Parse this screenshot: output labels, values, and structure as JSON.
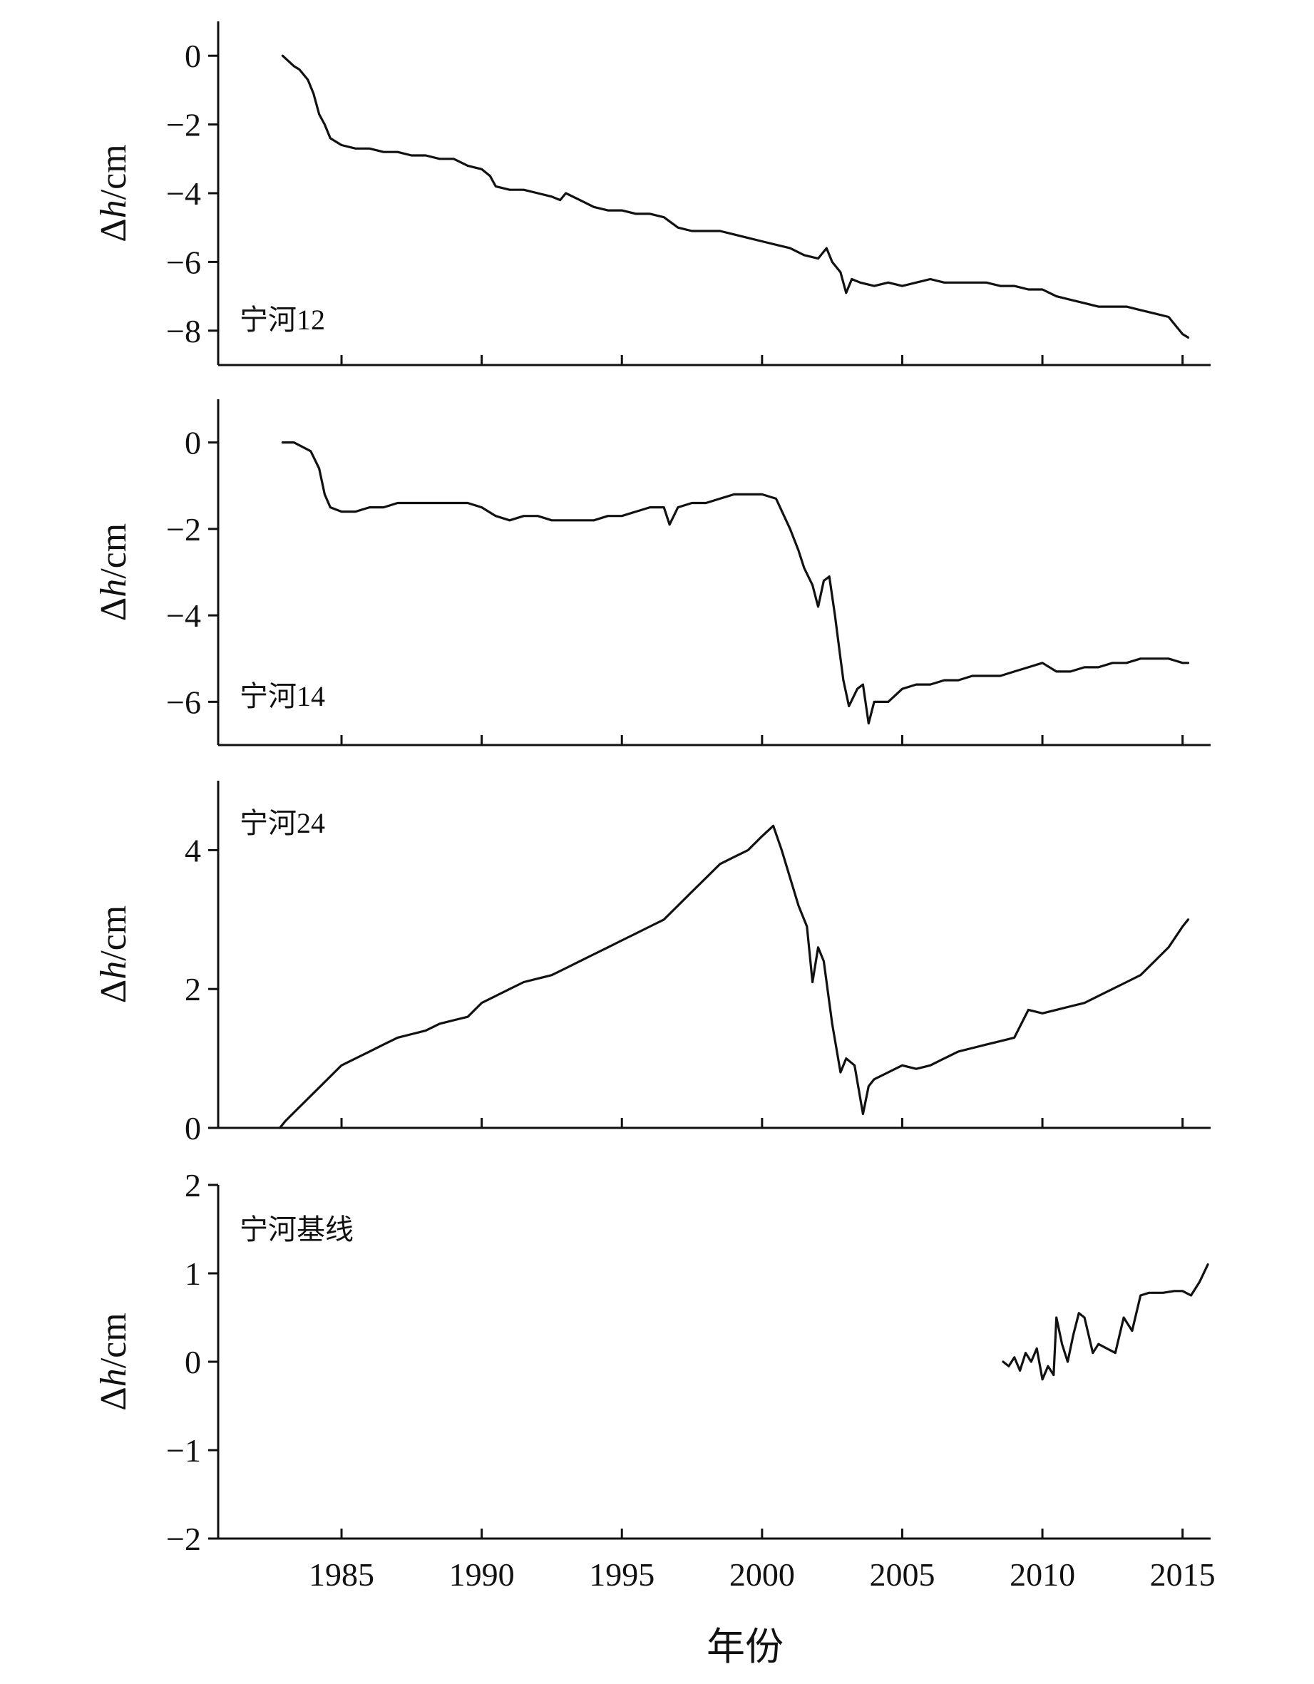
{
  "figure": {
    "xlabel": "年份",
    "x_ticks": [
      1985,
      1990,
      1995,
      2000,
      2005,
      2010,
      2015
    ],
    "xlim": [
      1980.6,
      2016.0
    ]
  },
  "chart_data": [
    {
      "type": "line",
      "title": "",
      "label": "宁河12",
      "ylabel_symbol": "Δ",
      "ylabel_var": "h",
      "ylabel_unit": "/cm",
      "ylim": [
        -9.0,
        1.0
      ],
      "y_ticks": [
        0,
        -2,
        -4,
        -6,
        -8
      ],
      "y_tick_labels": [
        "0",
        "−2",
        "−4",
        "−6",
        "−8"
      ],
      "show_x_tick_labels": false,
      "series": [
        {
          "x": [
            1982.9,
            1983.3,
            1983.5,
            1983.8,
            1984.0,
            1984.2,
            1984.4,
            1984.6,
            1985.0,
            1985.5,
            1986.0,
            1986.5,
            1987.0,
            1987.5,
            1988.0,
            1988.5,
            1989.0,
            1989.5,
            1990.0,
            1990.3,
            1990.5,
            1991.0,
            1991.5,
            1992.0,
            1992.5,
            1992.8,
            1993.0,
            1993.5,
            1994.0,
            1994.5,
            1995.0,
            1995.5,
            1996.0,
            1996.5,
            1997.0,
            1997.5,
            1998.0,
            1998.5,
            1999.0,
            1999.5,
            2000.0,
            2000.5,
            2001.0,
            2001.5,
            2002.0,
            2002.3,
            2002.5,
            2002.8,
            2003.0,
            2003.2,
            2003.5,
            2004.0,
            2004.5,
            2005.0,
            2005.5,
            2006.0,
            2006.5,
            2007.0,
            2007.5,
            2008.0,
            2008.5,
            2009.0,
            2009.5,
            2010.0,
            2010.5,
            2011.0,
            2011.5,
            2012.0,
            2012.5,
            2013.0,
            2013.5,
            2014.0,
            2014.5,
            2014.8,
            2015.0,
            2015.2
          ],
          "y": [
            0.0,
            -0.3,
            -0.4,
            -0.7,
            -1.1,
            -1.7,
            -2.0,
            -2.4,
            -2.6,
            -2.7,
            -2.7,
            -2.8,
            -2.8,
            -2.9,
            -2.9,
            -3.0,
            -3.0,
            -3.2,
            -3.3,
            -3.5,
            -3.8,
            -3.9,
            -3.9,
            -4.0,
            -4.1,
            -4.2,
            -4.0,
            -4.2,
            -4.4,
            -4.5,
            -4.5,
            -4.6,
            -4.6,
            -4.7,
            -5.0,
            -5.1,
            -5.1,
            -5.1,
            -5.2,
            -5.3,
            -5.4,
            -5.5,
            -5.6,
            -5.8,
            -5.9,
            -5.6,
            -6.0,
            -6.3,
            -6.9,
            -6.5,
            -6.6,
            -6.7,
            -6.6,
            -6.7,
            -6.6,
            -6.5,
            -6.6,
            -6.6,
            -6.6,
            -6.6,
            -6.7,
            -6.7,
            -6.8,
            -6.8,
            -7.0,
            -7.1,
            -7.2,
            -7.3,
            -7.3,
            -7.3,
            -7.4,
            -7.5,
            -7.6,
            -7.9,
            -8.1,
            -8.2
          ]
        }
      ]
    },
    {
      "type": "line",
      "title": "",
      "label": "宁河14",
      "ylabel_symbol": "Δ",
      "ylabel_var": "h",
      "ylabel_unit": "/cm",
      "ylim": [
        -7.0,
        1.0
      ],
      "y_ticks": [
        0,
        -2,
        -4,
        -6
      ],
      "y_tick_labels": [
        "0",
        "−2",
        "−4",
        "−6"
      ],
      "show_x_tick_labels": false,
      "series": [
        {
          "x": [
            1982.9,
            1983.3,
            1983.6,
            1983.9,
            1984.2,
            1984.4,
            1984.6,
            1985.0,
            1985.5,
            1986.0,
            1986.5,
            1987.0,
            1987.5,
            1988.0,
            1988.5,
            1989.0,
            1989.5,
            1990.0,
            1990.5,
            1991.0,
            1991.5,
            1992.0,
            1992.5,
            1993.0,
            1993.5,
            1994.0,
            1994.5,
            1995.0,
            1995.5,
            1996.0,
            1996.5,
            1996.7,
            1997.0,
            1997.5,
            1998.0,
            1998.5,
            1999.0,
            1999.5,
            2000.0,
            2000.5,
            2001.0,
            2001.3,
            2001.5,
            2001.8,
            2002.0,
            2002.2,
            2002.4,
            2002.6,
            2002.8,
            2002.9,
            2003.1,
            2003.4,
            2003.6,
            2003.8,
            2004.0,
            2004.5,
            2005.0,
            2005.5,
            2006.0,
            2006.5,
            2007.0,
            2007.5,
            2008.0,
            2008.5,
            2009.0,
            2009.5,
            2010.0,
            2010.5,
            2011.0,
            2011.5,
            2012.0,
            2012.5,
            2013.0,
            2013.5,
            2014.0,
            2014.5,
            2015.0,
            2015.2
          ],
          "y": [
            0.0,
            0.0,
            -0.1,
            -0.2,
            -0.6,
            -1.2,
            -1.5,
            -1.6,
            -1.6,
            -1.5,
            -1.5,
            -1.4,
            -1.4,
            -1.4,
            -1.4,
            -1.4,
            -1.4,
            -1.5,
            -1.7,
            -1.8,
            -1.7,
            -1.7,
            -1.8,
            -1.8,
            -1.8,
            -1.8,
            -1.7,
            -1.7,
            -1.6,
            -1.5,
            -1.5,
            -1.9,
            -1.5,
            -1.4,
            -1.4,
            -1.3,
            -1.2,
            -1.2,
            -1.2,
            -1.3,
            -2.0,
            -2.5,
            -2.9,
            -3.3,
            -3.8,
            -3.2,
            -3.1,
            -4.0,
            -5.0,
            -5.5,
            -6.1,
            -5.7,
            -5.6,
            -6.5,
            -6.0,
            -6.0,
            -5.7,
            -5.6,
            -5.6,
            -5.5,
            -5.5,
            -5.4,
            -5.4,
            -5.4,
            -5.3,
            -5.2,
            -5.1,
            -5.3,
            -5.3,
            -5.2,
            -5.2,
            -5.1,
            -5.1,
            -5.0,
            -5.0,
            -5.0,
            -5.1,
            -5.1
          ]
        }
      ]
    },
    {
      "type": "line",
      "title": "",
      "label": "宁河24",
      "ylabel_symbol": "Δ",
      "ylabel_var": "h",
      "ylabel_unit": "/cm",
      "ylim": [
        0.0,
        5.0
      ],
      "y_ticks": [
        0,
        2,
        4
      ],
      "y_tick_labels": [
        "0",
        "2",
        "4"
      ],
      "show_x_tick_labels": false,
      "series": [
        {
          "x": [
            1982.8,
            1983.0,
            1983.5,
            1984.0,
            1984.5,
            1985.0,
            1985.5,
            1986.0,
            1986.5,
            1987.0,
            1987.5,
            1988.0,
            1988.5,
            1989.0,
            1989.5,
            1990.0,
            1990.5,
            1991.0,
            1991.5,
            1992.0,
            1992.5,
            1993.0,
            1993.5,
            1994.0,
            1994.5,
            1995.0,
            1995.5,
            1996.0,
            1996.5,
            1997.0,
            1997.5,
            1998.0,
            1998.5,
            1999.0,
            1999.5,
            2000.0,
            2000.4,
            2000.7,
            2001.0,
            2001.3,
            2001.6,
            2001.8,
            2002.0,
            2002.2,
            2002.5,
            2002.8,
            2003.0,
            2003.3,
            2003.6,
            2003.8,
            2004.0,
            2004.5,
            2005.0,
            2005.5,
            2006.0,
            2006.5,
            2007.0,
            2007.5,
            2008.0,
            2008.5,
            2009.0,
            2009.5,
            2010.0,
            2010.5,
            2011.0,
            2011.5,
            2012.0,
            2012.5,
            2013.0,
            2013.5,
            2014.0,
            2014.5,
            2015.0,
            2015.2
          ],
          "y": [
            0.0,
            0.1,
            0.3,
            0.5,
            0.7,
            0.9,
            1.0,
            1.1,
            1.2,
            1.3,
            1.35,
            1.4,
            1.5,
            1.55,
            1.6,
            1.8,
            1.9,
            2.0,
            2.1,
            2.15,
            2.2,
            2.3,
            2.4,
            2.5,
            2.6,
            2.7,
            2.8,
            2.9,
            3.0,
            3.2,
            3.4,
            3.6,
            3.8,
            3.9,
            4.0,
            4.2,
            4.35,
            4.0,
            3.6,
            3.2,
            2.9,
            2.1,
            2.6,
            2.4,
            1.5,
            0.8,
            1.0,
            0.9,
            0.2,
            0.6,
            0.7,
            0.8,
            0.9,
            0.85,
            0.9,
            1.0,
            1.1,
            1.15,
            1.2,
            1.25,
            1.3,
            1.7,
            1.65,
            1.7,
            1.75,
            1.8,
            1.9,
            2.0,
            2.1,
            2.2,
            2.4,
            2.6,
            2.9,
            3.0
          ]
        }
      ]
    },
    {
      "type": "line",
      "title": "",
      "label": "宁河基线",
      "ylabel_symbol": "Δ",
      "ylabel_var": "h",
      "ylabel_unit": "/cm",
      "ylim": [
        -2.0,
        2.0
      ],
      "y_ticks": [
        2,
        1,
        0,
        -1,
        -2
      ],
      "y_tick_labels": [
        "2",
        "1",
        "0",
        "−1",
        "−2"
      ],
      "show_x_tick_labels": true,
      "series": [
        {
          "x": [
            2008.6,
            2008.8,
            2009.0,
            2009.2,
            2009.4,
            2009.6,
            2009.8,
            2010.0,
            2010.2,
            2010.4,
            2010.5,
            2010.7,
            2010.9,
            2011.1,
            2011.3,
            2011.5,
            2011.8,
            2012.0,
            2012.3,
            2012.6,
            2012.9,
            2013.2,
            2013.5,
            2013.8,
            2014.0,
            2014.3,
            2014.7,
            2015.0,
            2015.3,
            2015.6,
            2015.9
          ],
          "y": [
            0.0,
            -0.05,
            0.05,
            -0.1,
            0.1,
            0.0,
            0.15,
            -0.2,
            -0.05,
            -0.15,
            0.5,
            0.2,
            0.0,
            0.3,
            0.55,
            0.5,
            0.1,
            0.2,
            0.15,
            0.1,
            0.5,
            0.35,
            0.75,
            0.78,
            0.78,
            0.78,
            0.8,
            0.8,
            0.75,
            0.9,
            1.1
          ]
        }
      ]
    }
  ]
}
